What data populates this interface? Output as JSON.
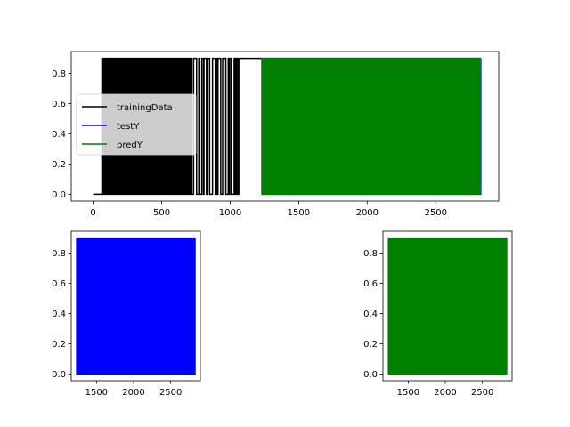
{
  "chart_data": [
    {
      "id": "top",
      "type": "line",
      "xlim": [
        -160,
        2960
      ],
      "ylim": [
        -0.045,
        0.945
      ],
      "xticks": [
        0,
        500,
        1000,
        1500,
        2000,
        2500
      ],
      "yticks": [
        0.0,
        0.2,
        0.4,
        0.6,
        0.8
      ],
      "legend": {
        "placement": "center-left",
        "entries": [
          {
            "label": "trainingData",
            "color": "#000000"
          },
          {
            "label": "testY",
            "color": "#0000ff"
          },
          {
            "label": "predY",
            "color": "#008000"
          }
        ]
      },
      "series": [
        {
          "name": "trainingData",
          "color": "#000000",
          "x_range": [
            0,
            1230
          ],
          "values": [
            0.0,
            0.9
          ],
          "pattern": [
            {
              "x": [
                0,
                60
              ],
              "state": 0.0
            },
            {
              "x": [
                60,
                720
              ],
              "state": "alternating-dense"
            },
            {
              "x": [
                720,
                1065
              ],
              "state": "alternating-sparse"
            },
            {
              "x": [
                1065,
                1230
              ],
              "state": 0.9
            }
          ]
        },
        {
          "name": "testY",
          "color": "#0000ff",
          "x_range": [
            1230,
            2830
          ],
          "values": [
            0.0,
            0.9
          ],
          "hidden_behind": "predY"
        },
        {
          "name": "predY",
          "color": "#008000",
          "x_range": [
            1230,
            2830
          ],
          "values": [
            0.0,
            0.9
          ],
          "pattern": [
            {
              "x": [
                1230,
                2830
              ],
              "state": "alternating-dense"
            }
          ]
        }
      ]
    },
    {
      "id": "bottom-left",
      "type": "line",
      "xlim": [
        1160,
        2900
      ],
      "ylim": [
        -0.045,
        0.945
      ],
      "xticks": [
        1500,
        2000,
        2500
      ],
      "yticks": [
        0.0,
        0.2,
        0.4,
        0.6,
        0.8
      ],
      "series": [
        {
          "name": "testY",
          "color": "#0000ff",
          "x_range": [
            1230,
            2830
          ],
          "values": [
            0.0,
            0.9
          ]
        }
      ]
    },
    {
      "id": "bottom-right",
      "type": "line",
      "xlim": [
        1160,
        2900
      ],
      "ylim": [
        -0.045,
        0.945
      ],
      "xticks": [
        1500,
        2000,
        2500
      ],
      "yticks": [
        0.0,
        0.2,
        0.4,
        0.6,
        0.8
      ],
      "series": [
        {
          "name": "predY",
          "color": "#008000",
          "x_range": [
            1230,
            2830
          ],
          "values": [
            0.0,
            0.9
          ]
        }
      ]
    }
  ]
}
